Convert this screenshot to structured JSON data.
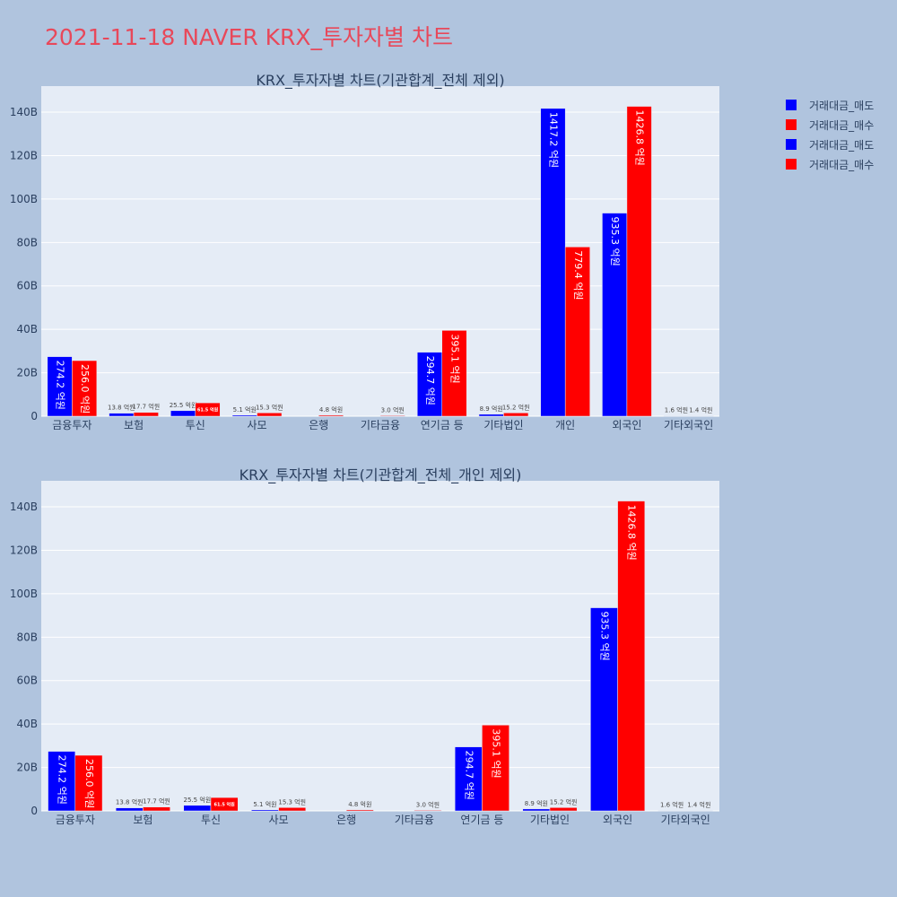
{
  "page": {
    "title": "2021-11-18 NAVER KRX_투자자별 차트"
  },
  "legend": [
    {
      "label": "거래대금_매도",
      "color": "#0000ff"
    },
    {
      "label": "거래대금_매수",
      "color": "#ff0000"
    },
    {
      "label": "거래대금_매도",
      "color": "#0000ff"
    },
    {
      "label": "거래대금_매수",
      "color": "#ff0000"
    }
  ],
  "chart_data": [
    {
      "type": "bar",
      "title": "KRX_투자자별 차트(기관합계_전체 제외)",
      "categories": [
        "금융투자",
        "보험",
        "투신",
        "사모",
        "은행",
        "기타금융",
        "연기금 등",
        "기타법인",
        "개인",
        "외국인",
        "기타외국인"
      ],
      "ylim": [
        0,
        152
      ],
      "yticks": [
        0,
        20,
        40,
        60,
        80,
        100,
        120,
        140
      ],
      "ytick_labels": [
        "0",
        "20B",
        "40B",
        "60B",
        "80B",
        "100B",
        "120B",
        "140B"
      ],
      "series": [
        {
          "name": "거래대금_매도",
          "color": "#0000ff",
          "values": [
            27.42,
            1.38,
            2.55,
            0.51,
            0,
            0,
            29.47,
            0.89,
            141.72,
            93.53,
            0.16
          ],
          "labels": [
            "274.2 억원",
            "13.8 억원",
            "25.5 억원",
            "5.1 억원",
            "",
            "",
            "294.7 억원",
            "8.9 억원",
            "1417.2 억원",
            "935.3 억원",
            "1.6 억원"
          ]
        },
        {
          "name": "거래대금_매수",
          "color": "#ff0000",
          "values": [
            25.6,
            1.77,
            6.15,
            1.53,
            0.48,
            0.3,
            39.51,
            1.52,
            77.94,
            142.68,
            0.14
          ],
          "labels": [
            "256.0 억원",
            "17.7 억원",
            "61.5 억원",
            "15.3 억원",
            "4.8 억원",
            "3.0 억원",
            "395.1 억원",
            "15.2 억원",
            "779.4 억원",
            "1426.8 억원",
            "1.4 억원"
          ]
        }
      ],
      "grid": true
    },
    {
      "type": "bar",
      "title": "KRX_투자자별 차트(기관합계_전체_개인 제외)",
      "categories": [
        "금융투자",
        "보험",
        "투신",
        "사모",
        "은행",
        "기타금융",
        "연기금 등",
        "기타법인",
        "외국인",
        "기타외국인"
      ],
      "ylim": [
        0,
        152
      ],
      "yticks": [
        0,
        20,
        40,
        60,
        80,
        100,
        120,
        140
      ],
      "ytick_labels": [
        "0",
        "20B",
        "40B",
        "60B",
        "80B",
        "100B",
        "120B",
        "140B"
      ],
      "series": [
        {
          "name": "거래대금_매도",
          "color": "#0000ff",
          "values": [
            27.42,
            1.38,
            2.55,
            0.51,
            0,
            0,
            29.47,
            0.89,
            93.53,
            0.16
          ],
          "labels": [
            "274.2 억원",
            "13.8 억원",
            "25.5 억원",
            "5.1 억원",
            "",
            "",
            "294.7 억원",
            "8.9 억원",
            "935.3 억원",
            "1.6 억원"
          ]
        },
        {
          "name": "거래대금_매수",
          "color": "#ff0000",
          "values": [
            25.6,
            1.77,
            6.15,
            1.53,
            0.48,
            0.3,
            39.51,
            1.52,
            142.68,
            0.14
          ],
          "labels": [
            "256.0 억원",
            "17.7 억원",
            "61.5 억원",
            "15.3 억원",
            "4.8 억원",
            "3.0 억원",
            "395.1 억원",
            "15.2 억원",
            "1426.8 억원",
            "1.4 억원"
          ]
        }
      ],
      "grid": true
    }
  ]
}
